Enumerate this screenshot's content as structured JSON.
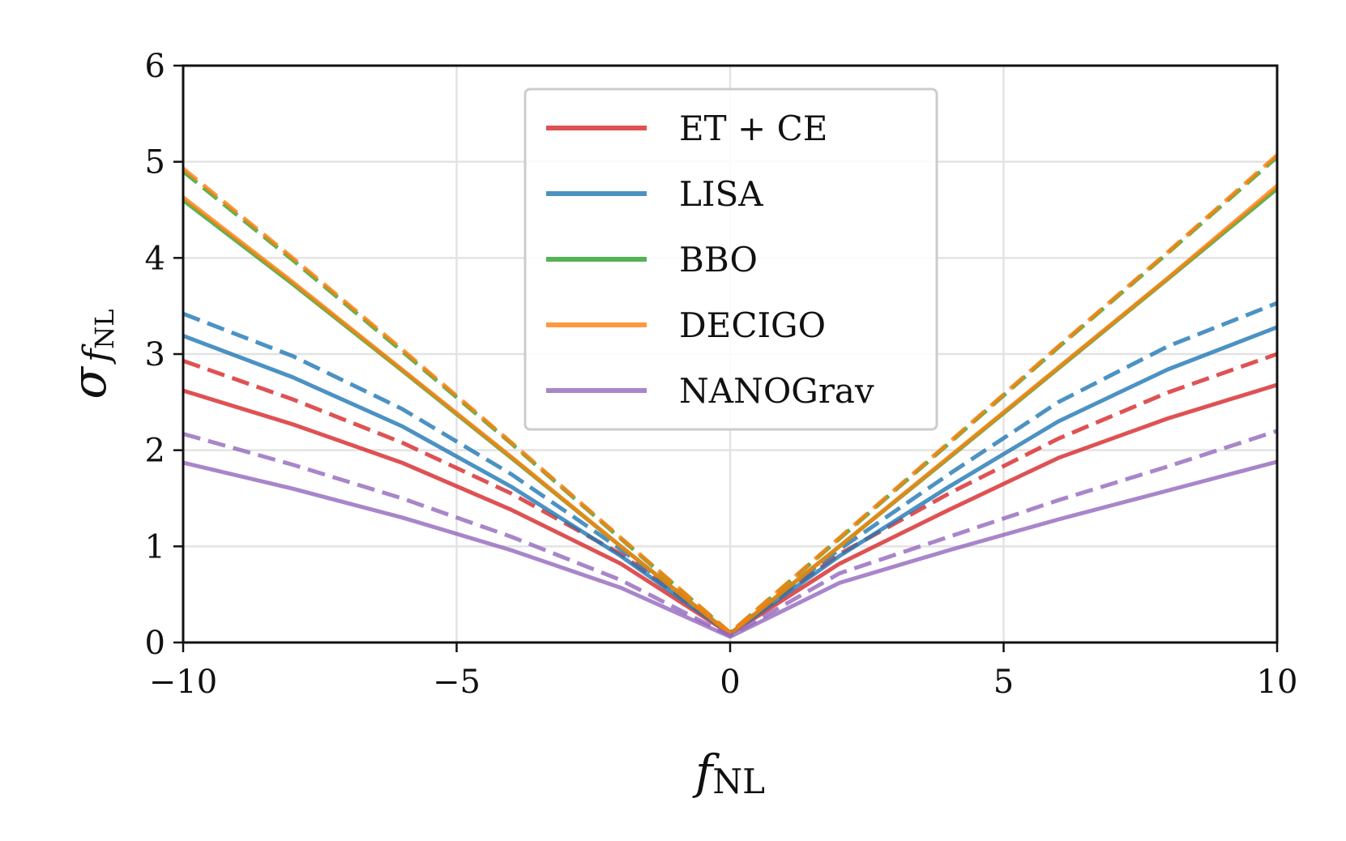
{
  "chart_data": {
    "type": "line",
    "title": "",
    "xlabel": {
      "main": "f",
      "sub": "NL"
    },
    "ylabel": {
      "main": "σ",
      "sub1": "f",
      "sub2": "NL"
    },
    "xlim": [
      -10,
      10
    ],
    "ylim": [
      0,
      6
    ],
    "xticks": [
      -10,
      -5,
      0,
      5,
      10
    ],
    "xtick_labels": [
      "−10",
      "−5",
      "0",
      "5",
      "10"
    ],
    "yticks": [
      0,
      1,
      2,
      3,
      4,
      5,
      6
    ],
    "ytick_labels": [
      "0",
      "1",
      "2",
      "3",
      "4",
      "5",
      "6"
    ],
    "grid": true,
    "legend_position": "top-center",
    "line_styles": {
      "solid": "solid",
      "dashed": "dashed"
    },
    "series": [
      {
        "name": "ET + CE",
        "color": "#d62728",
        "solid": {
          "x": [
            -10,
            -8,
            -6,
            -4,
            -2,
            0,
            2,
            4,
            6,
            8,
            10
          ],
          "y": [
            2.62,
            2.27,
            1.87,
            1.38,
            0.82,
            0.09,
            0.82,
            1.38,
            1.92,
            2.33,
            2.68
          ]
        },
        "dashed": {
          "x": [
            -10,
            -8,
            -6,
            -4,
            -2,
            0,
            2,
            4,
            6,
            8,
            10
          ],
          "y": [
            2.93,
            2.53,
            2.08,
            1.55,
            0.92,
            0.1,
            0.92,
            1.55,
            2.12,
            2.6,
            3.0
          ]
        }
      },
      {
        "name": "LISA",
        "color": "#1f77b4",
        "solid": {
          "x": [
            -10,
            -8,
            -6,
            -4,
            -2,
            0,
            2,
            4,
            6,
            8,
            10
          ],
          "y": [
            3.19,
            2.76,
            2.25,
            1.62,
            0.9,
            0.09,
            0.9,
            1.62,
            2.3,
            2.84,
            3.28
          ]
        },
        "dashed": {
          "x": [
            -10,
            -8,
            -6,
            -4,
            -2,
            0,
            2,
            4,
            6,
            8,
            10
          ],
          "y": [
            3.42,
            2.98,
            2.43,
            1.75,
            0.97,
            0.1,
            0.97,
            1.75,
            2.5,
            3.08,
            3.53
          ]
        }
      },
      {
        "name": "BBO",
        "color": "#2ca02c",
        "solid": {
          "x": [
            -10,
            -8,
            -6,
            -4,
            -2,
            0,
            2,
            4,
            6,
            8,
            10
          ],
          "y": [
            4.6,
            3.73,
            2.83,
            1.92,
            1.0,
            0.09,
            1.0,
            1.92,
            2.85,
            3.78,
            4.72
          ]
        },
        "dashed": {
          "x": [
            -10,
            -8,
            -6,
            -4,
            -2,
            0,
            2,
            4,
            6,
            8,
            10
          ],
          "y": [
            4.9,
            3.98,
            3.03,
            2.07,
            1.08,
            0.1,
            1.08,
            2.07,
            3.07,
            4.05,
            5.05
          ]
        }
      },
      {
        "name": "DECIGO",
        "color": "#ff7f0e",
        "solid": {
          "x": [
            -10,
            -8,
            -6,
            -4,
            -2,
            0,
            2,
            4,
            6,
            8,
            10
          ],
          "y": [
            4.63,
            3.75,
            2.84,
            1.93,
            1.0,
            0.09,
            1.0,
            1.93,
            2.86,
            3.79,
            4.75
          ]
        },
        "dashed": {
          "x": [
            -10,
            -8,
            -6,
            -4,
            -2,
            0,
            2,
            4,
            6,
            8,
            10
          ],
          "y": [
            4.93,
            4.0,
            3.05,
            2.08,
            1.09,
            0.1,
            1.09,
            2.08,
            3.08,
            4.06,
            5.07
          ]
        }
      },
      {
        "name": "NANOGrav",
        "color": "#9467bd",
        "solid": {
          "x": [
            -10,
            -8,
            -6,
            -4,
            -2,
            0,
            2,
            4,
            6,
            8,
            10
          ],
          "y": [
            1.87,
            1.6,
            1.3,
            0.96,
            0.57,
            0.06,
            0.62,
            0.96,
            1.28,
            1.58,
            1.88
          ]
        },
        "dashed": {
          "x": [
            -10,
            -8,
            -6,
            -4,
            -2,
            0,
            2,
            4,
            6,
            8,
            10
          ],
          "y": [
            2.17,
            1.85,
            1.5,
            1.1,
            0.65,
            0.07,
            0.72,
            1.1,
            1.48,
            1.83,
            2.2
          ]
        }
      }
    ]
  }
}
